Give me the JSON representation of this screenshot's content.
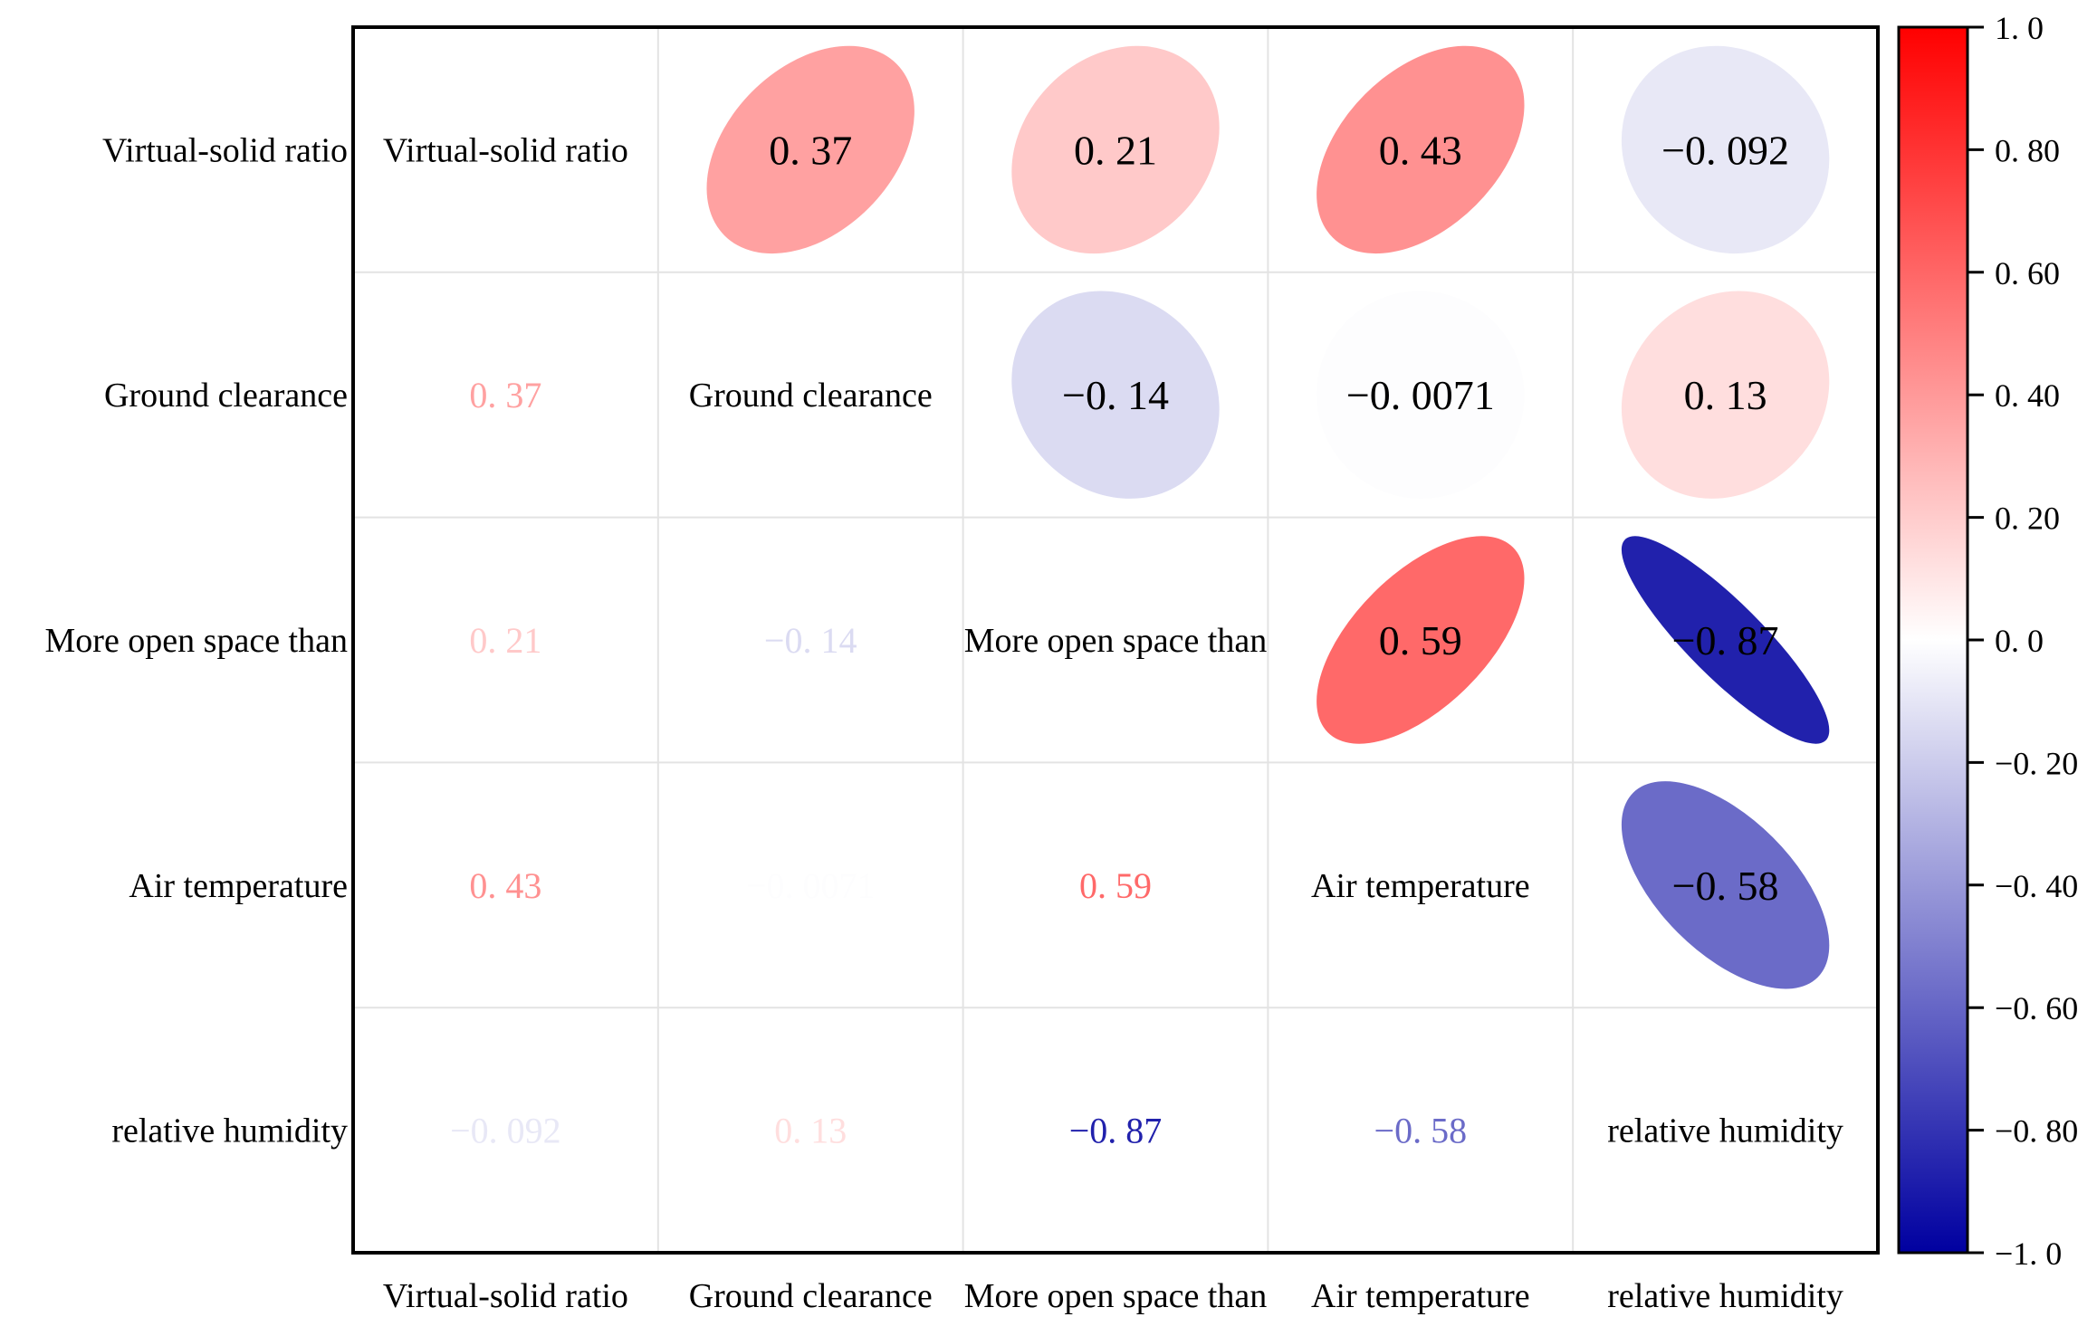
{
  "chart_data": {
    "type": "heatmap",
    "variables": [
      "Virtual-solid ratio",
      "Ground clearance",
      "More open space than",
      "Air temperature",
      "relative humidity"
    ],
    "matrix": [
      [
        1,
        0.37,
        0.21,
        0.43,
        -0.092
      ],
      [
        0.37,
        1,
        -0.14,
        -0.0071,
        0.13
      ],
      [
        0.21,
        -0.14,
        1,
        0.59,
        -0.87
      ],
      [
        0.43,
        -0.0071,
        0.59,
        1,
        -0.58
      ],
      [
        -0.092,
        0.13,
        -0.87,
        -0.58,
        1
      ]
    ],
    "upper_triangle_style": "ellipse",
    "lower_triangle_style": "number",
    "diagonal_style": "variable-name",
    "color_scale": {
      "min": -1.0,
      "max": 1.0,
      "low_color": "#0000a0",
      "mid_color": "#ffffff",
      "high_color": "#ff0000",
      "ticks": [
        1.0,
        0.8,
        0.6,
        0.4,
        0.2,
        0.0,
        -0.2,
        -0.4,
        -0.6,
        -0.8,
        -1.0
      ],
      "tick_labels": [
        "1. 0",
        "0. 80",
        "0. 60",
        "0. 40",
        "0. 20",
        "0. 0",
        "−0. 20",
        "−0. 40",
        "−0. 60",
        "−0. 80",
        "−1. 0"
      ],
      "legend_position": "right"
    },
    "cell_labels": {
      "0-1": "0. 37",
      "0-2": "0. 21",
      "0-3": "0. 43",
      "0-4": "−0. 092",
      "1-2": "−0. 14",
      "1-3": "−0. 0071",
      "1-4": "0. 13",
      "2-3": "0. 59",
      "2-4": "−0. 87",
      "3-4": "−0. 58"
    },
    "grid": true
  }
}
